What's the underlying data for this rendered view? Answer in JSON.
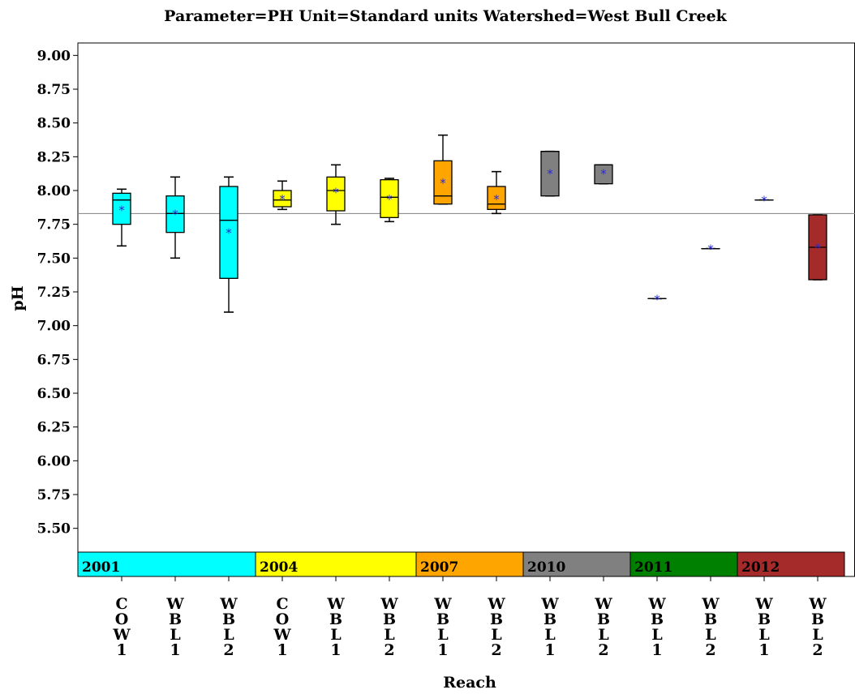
{
  "chart_data": {
    "type": "box",
    "title": "Parameter=PH  Unit=Standard units  Watershed=West Bull Creek",
    "xlabel": "Reach",
    "ylabel": "pH",
    "ylim": [
      5.3,
      9.08
    ],
    "yticks": [
      "5.50",
      "5.75",
      "6.00",
      "6.25",
      "6.50",
      "6.75",
      "7.00",
      "7.25",
      "7.50",
      "7.75",
      "8.00",
      "8.25",
      "8.50",
      "8.75",
      "9.00"
    ],
    "reference_line": 7.83,
    "grid": false,
    "groups": [
      {
        "year": "2001",
        "color": "#00ffff"
      },
      {
        "year": "2004",
        "color": "#ffff00"
      },
      {
        "year": "2007",
        "color": "#ffa500"
      },
      {
        "year": "2010",
        "color": "#808080"
      },
      {
        "year": "2011",
        "color": "#008000"
      },
      {
        "year": "2012",
        "color": "#a52a2a"
      }
    ],
    "boxes": [
      {
        "group": "2001",
        "reach": "COW1",
        "whisker_low": 7.59,
        "q1": 7.75,
        "median": 7.93,
        "q3": 7.98,
        "whisker_high": 8.01,
        "mean": 7.86
      },
      {
        "group": "2001",
        "reach": "WBL1",
        "whisker_low": 7.5,
        "q1": 7.69,
        "median": 7.83,
        "q3": 7.96,
        "whisker_high": 8.1,
        "mean": 7.83
      },
      {
        "group": "2001",
        "reach": "WBL2",
        "whisker_low": 7.1,
        "q1": 7.35,
        "median": 7.78,
        "q3": 8.03,
        "whisker_high": 8.1,
        "mean": 7.69
      },
      {
        "group": "2004",
        "reach": "COW1",
        "whisker_low": 7.86,
        "q1": 7.88,
        "median": 7.93,
        "q3": 8.0,
        "whisker_high": 8.07,
        "mean": 7.94
      },
      {
        "group": "2004",
        "reach": "WBL1",
        "whisker_low": 7.75,
        "q1": 7.85,
        "median": 8.0,
        "q3": 8.1,
        "whisker_high": 8.19,
        "mean": 7.99
      },
      {
        "group": "2004",
        "reach": "WBL2",
        "whisker_low": 7.77,
        "q1": 7.8,
        "median": 7.95,
        "q3": 8.08,
        "whisker_high": 8.09,
        "mean": 7.94
      },
      {
        "group": "2007",
        "reach": "WBL1",
        "whisker_low": 7.9,
        "q1": 7.9,
        "median": 7.96,
        "q3": 8.22,
        "whisker_high": 8.41,
        "mean": 8.06
      },
      {
        "group": "2007",
        "reach": "WBL2",
        "whisker_low": 7.83,
        "q1": 7.86,
        "median": 7.9,
        "q3": 8.03,
        "whisker_high": 8.14,
        "mean": 7.94
      },
      {
        "group": "2010",
        "reach": "WBL1",
        "whisker_low": 7.96,
        "q1": 7.96,
        "median": 8.29,
        "q3": 8.29,
        "whisker_high": 8.29,
        "mean": 8.13
      },
      {
        "group": "2010",
        "reach": "WBL2",
        "whisker_low": 8.05,
        "q1": 8.05,
        "median": 8.19,
        "q3": 8.19,
        "whisker_high": 8.19,
        "mean": 8.13
      },
      {
        "group": "2011",
        "reach": "WBL1",
        "whisker_low": 7.2,
        "q1": 7.2,
        "median": 7.2,
        "q3": 7.2,
        "whisker_high": 7.2,
        "mean": 7.2
      },
      {
        "group": "2011",
        "reach": "WBL2",
        "whisker_low": 7.57,
        "q1": 7.57,
        "median": 7.57,
        "q3": 7.57,
        "whisker_high": 7.57,
        "mean": 7.57
      },
      {
        "group": "2012",
        "reach": "WBL1",
        "whisker_low": 7.93,
        "q1": 7.93,
        "median": 7.93,
        "q3": 7.93,
        "whisker_high": 7.93,
        "mean": 7.93
      },
      {
        "group": "2012",
        "reach": "WBL2",
        "whisker_low": 7.34,
        "q1": 7.34,
        "median": 7.58,
        "q3": 7.82,
        "whisker_high": 7.82,
        "mean": 7.58
      }
    ]
  }
}
